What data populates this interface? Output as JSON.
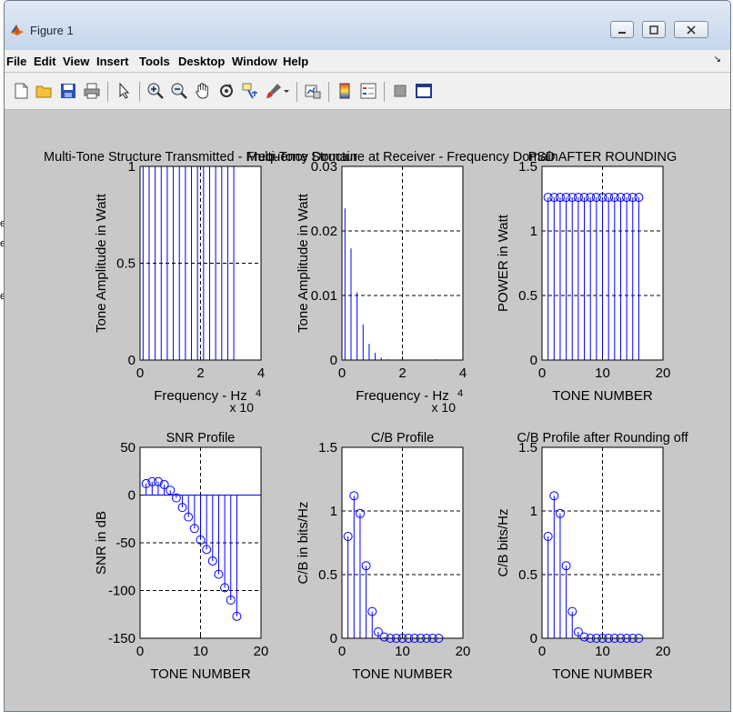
{
  "window": {
    "title": "Figure 1"
  },
  "left_edge_chars": [
    "e",
    "e",
    "e"
  ],
  "menubar": {
    "items": [
      "File",
      "Edit",
      "View",
      "Insert",
      "Tools",
      "Desktop",
      "Window",
      "Help"
    ],
    "overflow": "↘"
  },
  "toolbar": {
    "icons": [
      "new-figure-icon",
      "open-file-icon",
      "save-icon",
      "print-icon",
      "pointer-icon",
      "zoom-in-icon",
      "zoom-out-icon",
      "pan-icon",
      "rotate-icon",
      "data-cursor-icon",
      "brush-icon",
      "dropdown-arrow-icon",
      "link-plot-icon",
      "colorbar-icon",
      "legend-icon",
      "hide-plot-tools-icon",
      "show-plot-tools-icon"
    ]
  },
  "chart_data": [
    {
      "type": "stem",
      "title": "Multi-Tone Structure Transmitted - Frequency Domain",
      "xlabel": "Frequency - Hz",
      "ylabel": "Tone Amplitude in Watt",
      "xlim": [
        0,
        4
      ],
      "ylim": [
        0,
        1
      ],
      "xticks": [
        "0",
        "2",
        "4"
      ],
      "yticks": [
        "0",
        "0.5",
        "1"
      ],
      "xexp": "x 10",
      "xexp_power": "4",
      "grid": true,
      "color": "#0000ff",
      "x": [
        0.1,
        0.3,
        0.5,
        0.7,
        0.9,
        1.1,
        1.3,
        1.5,
        1.7,
        1.9,
        2.1,
        2.3,
        2.5,
        2.7,
        2.9,
        3.1
      ],
      "y": [
        1,
        1,
        1,
        1,
        1,
        1,
        1,
        1,
        1,
        1,
        1,
        1,
        1,
        1,
        1,
        1
      ]
    },
    {
      "type": "stem",
      "title": "Multi-Tone Structure at Receiver - Frequency Domain",
      "xlabel": "Frequency - Hz",
      "ylabel": "Tone Amplitude in Watt",
      "xlim": [
        0,
        4
      ],
      "ylim": [
        0,
        0.03
      ],
      "xticks": [
        "0",
        "2",
        "4"
      ],
      "yticks": [
        "0",
        "0.01",
        "0.02",
        "0.03"
      ],
      "xexp": "x 10",
      "xexp_power": "4",
      "grid": true,
      "color": "#0000ff",
      "x": [
        0.1,
        0.3,
        0.5,
        0.7,
        0.9,
        1.1,
        1.3,
        1.5,
        1.7,
        1.9,
        2.1,
        2.3,
        2.5,
        2.7,
        2.9,
        3.1
      ],
      "y": [
        0.0235,
        0.0173,
        0.0105,
        0.0055,
        0.0025,
        0.0011,
        0.0004,
        0.0001,
        0,
        0,
        0,
        0,
        0,
        0,
        0,
        0.0001
      ]
    },
    {
      "type": "stem",
      "title": "PSD AFTER ROUNDING",
      "xlabel": "TONE NUMBER",
      "ylabel": "POWER in Watt",
      "xlim": [
        0,
        20
      ],
      "ylim": [
        0,
        1.5
      ],
      "xticks": [
        "0",
        "10",
        "20"
      ],
      "yticks": [
        "0",
        "0.5",
        "1",
        "1.5"
      ],
      "grid": true,
      "color": "#0000ff",
      "marker": "circle",
      "x": [
        1,
        2,
        3,
        4,
        5,
        6,
        7,
        8,
        9,
        10,
        11,
        12,
        13,
        14,
        15,
        16
      ],
      "y": [
        1.26,
        1.26,
        1.26,
        1.26,
        1.26,
        1.26,
        1.26,
        1.26,
        1.26,
        1.26,
        1.26,
        1.26,
        1.26,
        1.26,
        1.26,
        1.26
      ]
    },
    {
      "type": "stem",
      "title": "SNR Profile",
      "xlabel": "TONE NUMBER",
      "ylabel": "SNR in dB",
      "xlim": [
        0,
        20
      ],
      "ylim": [
        -150,
        50
      ],
      "xticks": [
        "0",
        "10",
        "20"
      ],
      "yticks": [
        "-150",
        "-100",
        "-50",
        "0",
        "50"
      ],
      "grid": true,
      "color": "#0000ff",
      "marker": "circle",
      "x": [
        1,
        2,
        3,
        4,
        5,
        6,
        7,
        8,
        9,
        10,
        11,
        12,
        13,
        14,
        15,
        16
      ],
      "y": [
        12,
        14,
        14,
        11,
        5,
        -3,
        -13,
        -23,
        -35,
        -47,
        -57,
        -69,
        -83,
        -97,
        -110,
        -127
      ]
    },
    {
      "type": "stem",
      "title": "C/B Profile",
      "xlabel": "TONE NUMBER",
      "ylabel": "C/B in bits/Hz",
      "xlim": [
        0,
        20
      ],
      "ylim": [
        0,
        1.5
      ],
      "xticks": [
        "0",
        "10",
        "20"
      ],
      "yticks": [
        "0",
        "0.5",
        "1",
        "1.5"
      ],
      "grid": true,
      "color": "#0000ff",
      "marker": "circle",
      "x": [
        1,
        2,
        3,
        4,
        5,
        6,
        7,
        8,
        9,
        10,
        11,
        12,
        13,
        14,
        15,
        16
      ],
      "y": [
        0.8,
        1.12,
        0.98,
        0.57,
        0.21,
        0.05,
        0.01,
        0,
        0,
        0,
        0,
        0,
        0,
        0,
        0,
        0
      ]
    },
    {
      "type": "stem",
      "title": "C/B Profile after Rounding off",
      "xlabel": "TONE NUMBER",
      "ylabel": "C/B bits/Hz",
      "xlim": [
        0,
        20
      ],
      "ylim": [
        0,
        1.5
      ],
      "xticks": [
        "0",
        "10",
        "20"
      ],
      "yticks": [
        "0",
        "0.5",
        "1",
        "1.5"
      ],
      "grid": true,
      "color": "#0000ff",
      "marker": "circle",
      "x": [
        1,
        2,
        3,
        4,
        5,
        6,
        7,
        8,
        9,
        10,
        11,
        12,
        13,
        14,
        15,
        16
      ],
      "y": [
        0.8,
        1.12,
        0.98,
        0.57,
        0.21,
        0.05,
        0.01,
        0,
        0,
        0,
        0,
        0,
        0,
        0,
        0,
        0
      ]
    }
  ]
}
